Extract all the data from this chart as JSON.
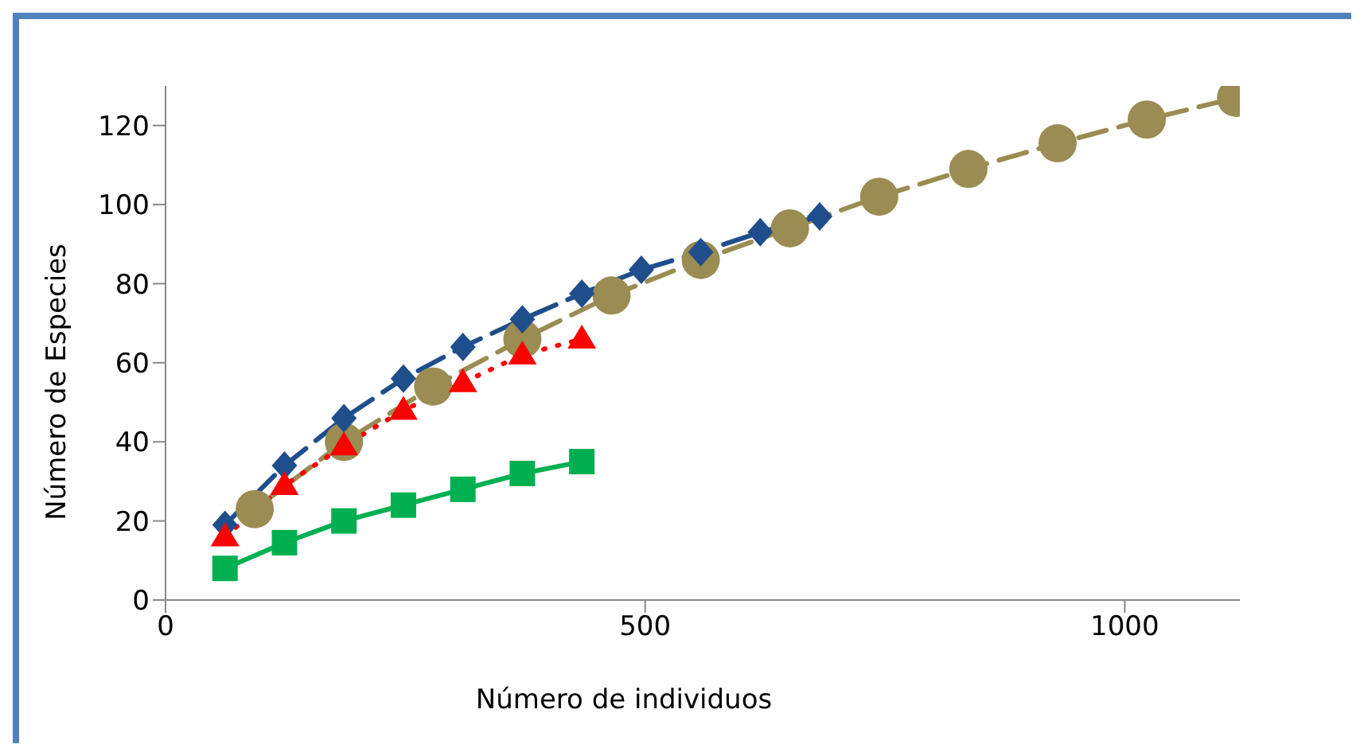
{
  "chart_data": {
    "type": "line",
    "xlabel": "Número de individuos",
    "ylabel": "Número de Especies",
    "xlim": [
      0,
      1120
    ],
    "xticks": [
      0,
      500,
      1000
    ],
    "ylim": [
      0,
      130
    ],
    "yticks": [
      0,
      20,
      40,
      60,
      80,
      100,
      120
    ],
    "grid": false,
    "series": [
      {
        "color": "#9a8c52",
        "marker": "circle",
        "line_style": "dashed",
        "x": [
          93,
          186,
          279,
          372,
          465,
          558,
          651,
          744,
          837,
          930,
          1023,
          1116
        ],
        "values": [
          23,
          40,
          54,
          66,
          77,
          86,
          94,
          102,
          109,
          115.5,
          121.5,
          127
        ]
      },
      {
        "color": "#1f4e8c",
        "marker": "diamond",
        "line_style": "dashed",
        "x": [
          62,
          124,
          186,
          248,
          310,
          372,
          434,
          496,
          558,
          620,
          682
        ],
        "values": [
          19,
          34,
          46,
          56,
          64,
          71,
          77.5,
          83.5,
          88,
          93,
          97
        ]
      },
      {
        "color": "#ff0000",
        "marker": "triangle",
        "line_style": "dotted",
        "x": [
          62,
          124,
          186,
          248,
          310,
          372,
          434
        ],
        "values": [
          16,
          29,
          39,
          48,
          55,
          62,
          66
        ]
      },
      {
        "color": "#00b050",
        "marker": "square",
        "line_style": "solid",
        "x": [
          62,
          124,
          186,
          248,
          310,
          372,
          434
        ],
        "values": [
          8,
          14.5,
          20,
          24,
          28,
          32,
          35
        ]
      }
    ]
  }
}
